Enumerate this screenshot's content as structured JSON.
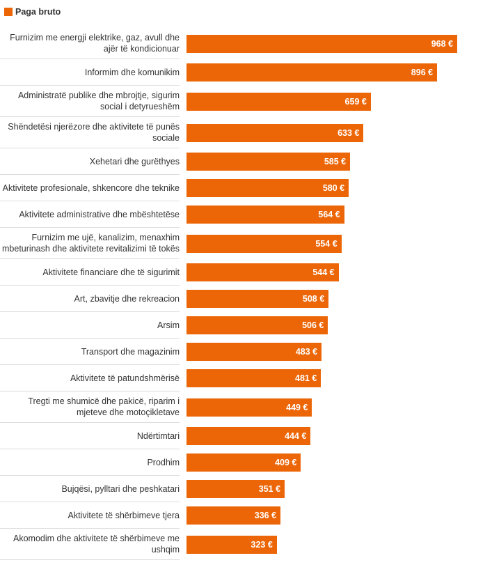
{
  "chart_data": {
    "type": "bar",
    "orientation": "horizontal",
    "legend": "Paga bruto",
    "color": "#ec6608",
    "categories": [
      "Furnizim me energji elektrike, gaz, avull dhe ajër të kondicionuar",
      "Informim dhe komunikim",
      "Administratë publike dhe mbrojtje, sigurim social i detyrueshëm",
      "Shëndetësi njerëzore dhe aktivitete të punës sociale",
      "Xehetari dhe gurëthyes",
      "Aktivitete profesionale, shkencore dhe teknike",
      "Aktivitete administrative dhe mbështetëse",
      "Furnizim me ujë, kanalizim, menaxhim mbeturinash dhe aktivitete revitalizimi të tokës",
      "Aktivitete financiare dhe të sigurimit",
      "Art, zbavitje dhe rekreacion",
      "Arsim",
      "Transport dhe magazinim",
      "Aktivitete të patundshmërisë",
      "Tregti me shumicë dhe pakicë, riparim i mjeteve dhe motoçikletave",
      "Ndërtimtari",
      "Prodhim",
      "Bujqësi, pylltari dhe peshkatari",
      "Aktivitete të shërbimeve tjera",
      "Akomodim dhe aktivitete të shërbimeve me ushqim"
    ],
    "values": [
      968,
      896,
      659,
      633,
      585,
      580,
      564,
      554,
      544,
      508,
      506,
      483,
      481,
      449,
      444,
      409,
      351,
      336,
      323
    ],
    "value_labels": [
      "968 €",
      "896 €",
      "659 €",
      "633 €",
      "585 €",
      "580 €",
      "564 €",
      "554 €",
      "544 €",
      "508 €",
      "506 €",
      "483 €",
      "481 €",
      "449 €",
      "444 €",
      "409 €",
      "351 €",
      "336 €",
      "323 €"
    ]
  }
}
